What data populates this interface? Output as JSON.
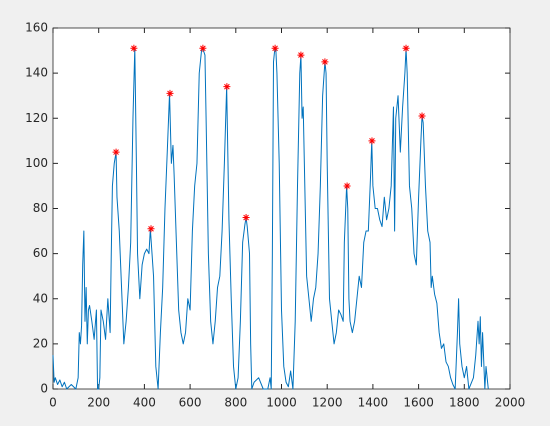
{
  "chart_data": {
    "type": "line",
    "series": [
      {
        "color": "#0072bd",
        "marker": "none",
        "x": [
          0,
          5,
          10,
          20,
          30,
          40,
          50,
          60,
          80,
          100,
          110,
          115,
          120,
          125,
          130,
          135,
          140,
          145,
          150,
          155,
          160,
          170,
          180,
          190,
          195,
          200,
          205,
          210,
          220,
          230,
          240,
          250,
          255,
          260,
          268,
          276,
          280,
          290,
          300,
          310,
          320,
          330,
          340,
          350,
          358,
          365,
          370,
          380,
          390,
          400,
          410,
          420,
          426,
          432,
          440,
          450,
          460,
          470,
          480,
          490,
          500,
          510,
          518,
          525,
          530,
          540,
          550,
          560,
          570,
          580,
          590,
          600,
          610,
          620,
          630,
          640,
          650,
          655,
          665,
          670,
          680,
          690,
          700,
          710,
          720,
          730,
          740,
          750,
          760,
          765,
          770,
          780,
          790,
          800,
          810,
          820,
          830,
          840,
          845,
          850,
          860,
          865,
          870,
          880,
          900,
          920,
          940,
          950,
          955,
          960,
          965,
          970,
          975,
          980,
          990,
          1000,
          1010,
          1020,
          1030,
          1040,
          1050,
          1060,
          1070,
          1080,
          1085,
          1090,
          1095,
          1100,
          1110,
          1120,
          1130,
          1140,
          1150,
          1160,
          1170,
          1180,
          1190,
          1195,
          1200,
          1210,
          1220,
          1230,
          1240,
          1250,
          1260,
          1270,
          1275,
          1285,
          1290,
          1295,
          1300,
          1310,
          1320,
          1330,
          1340,
          1350,
          1360,
          1370,
          1380,
          1390,
          1395,
          1400,
          1410,
          1420,
          1430,
          1440,
          1450,
          1460,
          1470,
          1480,
          1490,
          1495,
          1500,
          1510,
          1520,
          1530,
          1540,
          1545,
          1550,
          1560,
          1570,
          1580,
          1590,
          1600,
          1610,
          1615,
          1620,
          1630,
          1640,
          1650,
          1655,
          1660,
          1670,
          1680,
          1690,
          1700,
          1710,
          1720,
          1730,
          1740,
          1750,
          1760,
          1770,
          1775,
          1780,
          1790,
          1800,
          1810,
          1820,
          1840,
          1850,
          1860,
          1865,
          1870,
          1875,
          1880,
          1890,
          1895,
          1900,
          1905
        ],
        "values": [
          15,
          3,
          5,
          2,
          4,
          1,
          3,
          0,
          2,
          0,
          5,
          25,
          20,
          28,
          55,
          70,
          30,
          45,
          20,
          35,
          37,
          30,
          22,
          35,
          0,
          0,
          5,
          35,
          30,
          22,
          40,
          25,
          60,
          90,
          100,
          105,
          85,
          70,
          45,
          20,
          30,
          45,
          65,
          120,
          151,
          100,
          60,
          40,
          55,
          60,
          62,
          60,
          71,
          62,
          50,
          10,
          0,
          25,
          45,
          80,
          105,
          131,
          100,
          108,
          95,
          65,
          35,
          25,
          20,
          25,
          40,
          35,
          70,
          90,
          100,
          140,
          150,
          151,
          148,
          120,
          60,
          30,
          20,
          30,
          45,
          50,
          70,
          100,
          134,
          105,
          75,
          40,
          10,
          0,
          5,
          30,
          65,
          73,
          76,
          72,
          60,
          20,
          0,
          3,
          5,
          0,
          0,
          5,
          0,
          60,
          145,
          150,
          151,
          140,
          100,
          35,
          10,
          3,
          1,
          8,
          0,
          30,
          90,
          140,
          148,
          120,
          125,
          100,
          50,
          40,
          30,
          40,
          45,
          60,
          90,
          130,
          145,
          140,
          100,
          40,
          30,
          20,
          25,
          35,
          33,
          30,
          65,
          90,
          80,
          40,
          30,
          25,
          30,
          40,
          50,
          45,
          65,
          70,
          70,
          95,
          110,
          90,
          80,
          80,
          75,
          72,
          85,
          75,
          80,
          90,
          125,
          70,
          120,
          130,
          105,
          125,
          140,
          151,
          140,
          90,
          80,
          60,
          55,
          85,
          110,
          121,
          118,
          90,
          70,
          65,
          45,
          50,
          42,
          38,
          25,
          18,
          20,
          12,
          10,
          5,
          2,
          0,
          25,
          40,
          20,
          10,
          5,
          10,
          0,
          5,
          15,
          30,
          20,
          32,
          10,
          25,
          0,
          10,
          5,
          0
        ]
      },
      {
        "color": "#ff0000",
        "marker": "asterisk",
        "x": [
          276,
          354,
          429,
          512,
          656,
          761,
          845,
          972,
          1085,
          1190,
          1287,
          1396,
          1545,
          1615
        ],
        "values": [
          105,
          151,
          71,
          131,
          151,
          134,
          76,
          151,
          148,
          145,
          90,
          110,
          151,
          121
        ]
      }
    ],
    "xlim": [
      0,
      2000
    ],
    "xticks": [
      0,
      200,
      400,
      600,
      800,
      1000,
      1200,
      1400,
      1600,
      1800,
      2000
    ],
    "ylim": [
      0,
      160
    ],
    "yticks": [
      0,
      20,
      40,
      60,
      80,
      100,
      120,
      140,
      160
    ]
  }
}
